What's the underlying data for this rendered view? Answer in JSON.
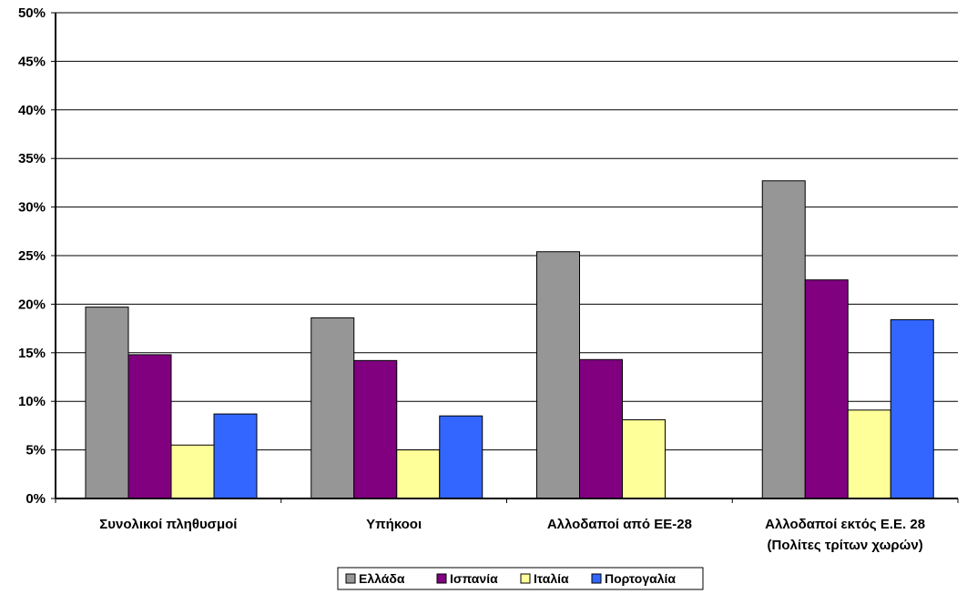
{
  "chart_data": {
    "type": "bar",
    "categories": [
      [
        "Συνολικοί πληθυσμοί"
      ],
      [
        "Υπήκοοι"
      ],
      [
        "Αλλοδαποί από ΕΕ-28"
      ],
      [
        "Αλλοδαποί εκτός Ε.Ε. 28",
        "(Πολίτες τρίτων χωρών)"
      ]
    ],
    "series": [
      {
        "name": "Ελλάδα",
        "color": "#969696",
        "values": [
          19.7,
          18.6,
          25.4,
          32.7
        ]
      },
      {
        "name": "Ισπανία",
        "color": "#800080",
        "values": [
          14.8,
          14.2,
          14.3,
          22.5
        ]
      },
      {
        "name": "Ιταλία",
        "color": "#ffff99",
        "values": [
          5.5,
          5.0,
          8.1,
          9.1
        ]
      },
      {
        "name": "Πορτογαλία",
        "color": "#3366ff",
        "values": [
          8.7,
          8.5,
          0,
          18.4
        ]
      }
    ],
    "ylim": [
      0,
      50
    ],
    "yticks": [
      "0%",
      "5%",
      "10%",
      "15%",
      "20%",
      "25%",
      "30%",
      "35%",
      "40%",
      "45%",
      "50%"
    ],
    "grid": true,
    "legend": "bottom-center",
    "title": "",
    "xlabel": "",
    "ylabel": ""
  }
}
